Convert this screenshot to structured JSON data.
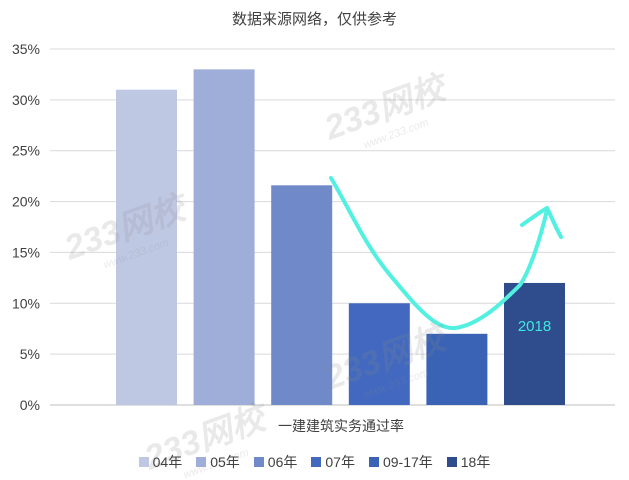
{
  "chart_data": {
    "type": "bar",
    "title": "数据来源网络，仅供参考",
    "xlabel": "一建建筑实务通过率",
    "ylabel": "",
    "ylim": [
      0,
      35
    ],
    "yticks": [
      "0%",
      "5%",
      "10%",
      "15%",
      "20%",
      "25%",
      "30%",
      "35%"
    ],
    "grid": true,
    "legend_position": "bottom",
    "series": [
      {
        "name": "04年",
        "value": 31,
        "color": "#bfc8e3"
      },
      {
        "name": "05年",
        "value": 33,
        "color": "#9eaed8"
      },
      {
        "name": "06年",
        "value": 21.6,
        "color": "#6f89c9"
      },
      {
        "name": "07年",
        "value": 10,
        "color": "#4269bf"
      },
      {
        "name": "09-17年",
        "value": 7,
        "color": "#3a62b5"
      },
      {
        "name": "18年",
        "value": 12,
        "color": "#2f4d8c"
      }
    ],
    "annotations": [
      {
        "text": "2018",
        "series": "18年",
        "color": "#3ee8e0"
      }
    ],
    "trend_arrow_color": "#52f0e0"
  },
  "watermark": {
    "brand": "233网校",
    "url": "www.233.com"
  }
}
